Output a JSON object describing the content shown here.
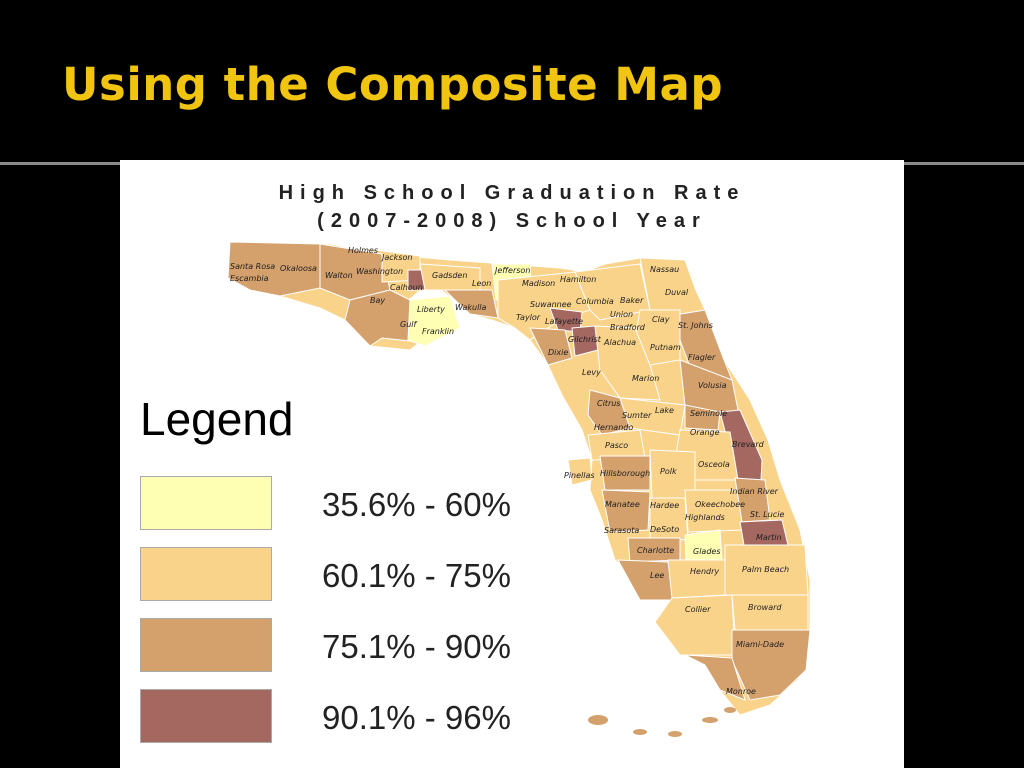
{
  "slide": {
    "title": "Using the Composite Map"
  },
  "map": {
    "title_line1": "High School Graduation Rate",
    "title_line2": "(2007-2008) School Year"
  },
  "legend": {
    "title": "Legend",
    "items": [
      {
        "label": "35.6% - 60%",
        "color": "#ffffb4"
      },
      {
        "label": "60.1% - 75%",
        "color": "#f9d38a"
      },
      {
        "label": "75.1% - 90%",
        "color": "#d4a06c"
      },
      {
        "label": "90.1% - 96%",
        "color": "#a46861"
      }
    ]
  },
  "counties": [
    "Santa Rosa",
    "Okaloosa",
    "Escambia",
    "Holmes",
    "Jackson",
    "Walton",
    "Washington",
    "Calhoun",
    "Gadsden",
    "Jefferson",
    "Hamilton",
    "Nassau",
    "Leon",
    "Madison",
    "Duval",
    "Bay",
    "Liberty",
    "Wakulla",
    "Suwannee",
    "Columbia",
    "Baker",
    "Gulf",
    "Franklin",
    "Taylor",
    "Lafayette",
    "Union",
    "Clay",
    "St. Johns",
    "Bradford",
    "Gilchrist",
    "Alachua",
    "Putnam",
    "Dixie",
    "Flagler",
    "Levy",
    "Marion",
    "Volusia",
    "Citrus",
    "Sumter",
    "Lake",
    "Seminole",
    "Hernando",
    "Orange",
    "Pasco",
    "Brevard",
    "Pinellas",
    "Hillsborough",
    "Polk",
    "Osceola",
    "Indian River",
    "Manatee",
    "Hardee",
    "Okeechobee",
    "Highlands",
    "St. Lucie",
    "Sarasota",
    "DeSoto",
    "Martin",
    "Charlotte",
    "Glades",
    "Lee",
    "Hendry",
    "Palm Beach",
    "Collier",
    "Broward",
    "Miami-Dade",
    "Monroe"
  ]
}
